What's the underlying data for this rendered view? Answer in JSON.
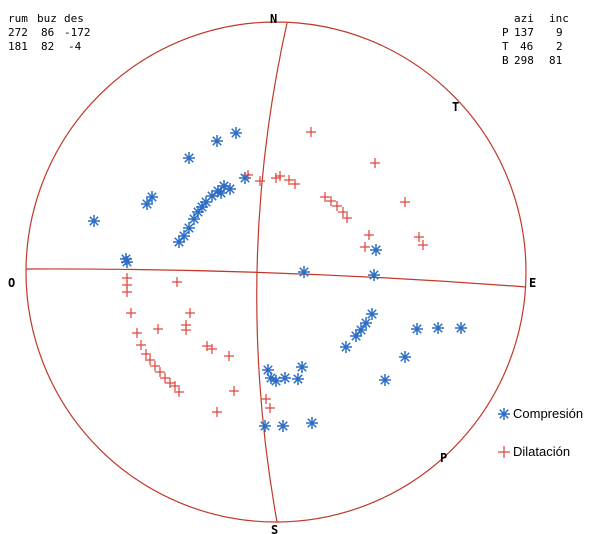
{
  "plot": {
    "circle_color": "#c0392b",
    "plane_color": "#c0392b",
    "compression_color": "#2b6cc4",
    "dilatation_color": "#e0413a"
  },
  "left_table": {
    "headers": [
      "rum",
      "buz",
      "des"
    ],
    "rows": [
      [
        "272",
        "86",
        "-172"
      ],
      [
        "181",
        "82",
        "-4"
      ]
    ]
  },
  "right_table": {
    "headers": [
      "azi",
      "inc"
    ],
    "rows": [
      {
        "label": "P",
        "azi": "137",
        "inc": "9"
      },
      {
        "label": "T",
        "azi": "46",
        "inc": "2"
      },
      {
        "label": "B",
        "azi": "298",
        "inc": "81"
      }
    ]
  },
  "labels": {
    "north": "N",
    "south": "S",
    "east": "E",
    "west": "O",
    "t_axis": "T",
    "p_axis": "P"
  },
  "legend": {
    "compression": "Compresión",
    "dilatation": "Dilatación",
    "compression_icon": "asterisk-icon",
    "dilatation_icon": "plus-icon"
  }
}
